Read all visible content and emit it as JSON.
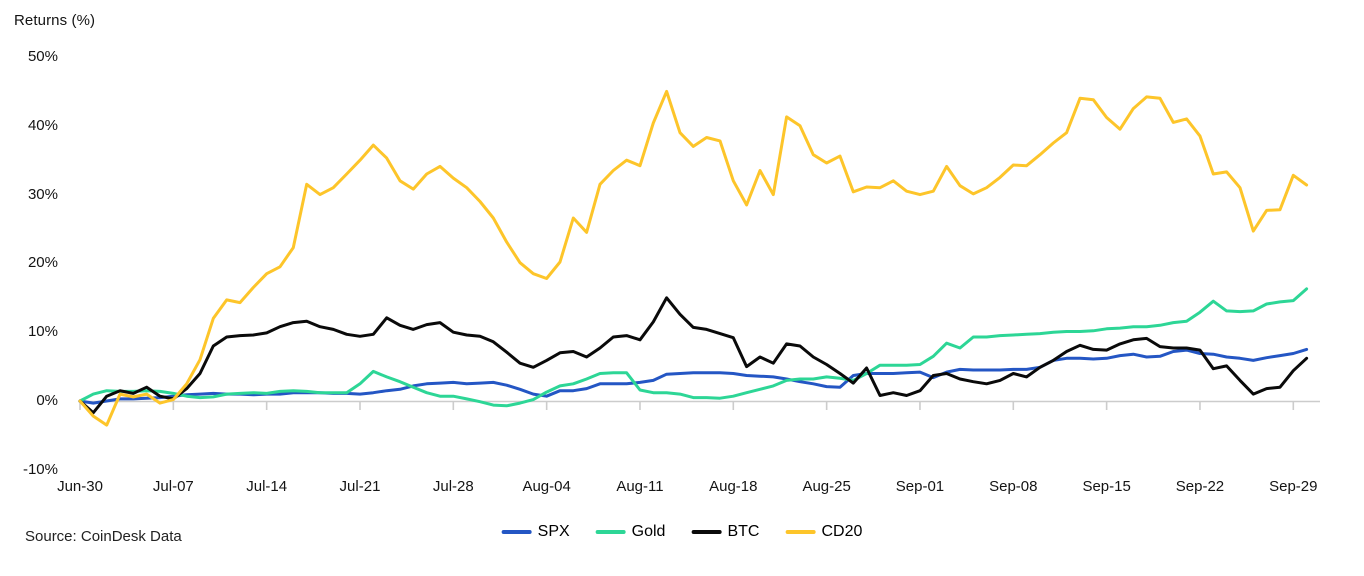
{
  "header": {
    "title": "Returns (%)"
  },
  "footer": {
    "source": "Source: CoinDesk Data"
  },
  "colors": {
    "spx_blue": "#2456c4",
    "gold_green": "#2dd696",
    "btc_black": "#0a0a0a",
    "cd20_yellow": "#fdc52a",
    "axis_gray": "#cccccc",
    "text_dark": "#141414"
  },
  "chart_data": {
    "type": "line",
    "title": "Returns (%)",
    "ylabel": "Returns (%)",
    "ylim": [
      -10,
      50
    ],
    "yticks": [
      50,
      40,
      30,
      20,
      10,
      0,
      -10
    ],
    "ytick_suffix": "%",
    "grid": "zero-baseline-only",
    "legend_position": "bottom-center",
    "x_tick_labels": [
      "Jun-30",
      "Jul-07",
      "Jul-14",
      "Jul-21",
      "Jul-28",
      "Aug-04",
      "Aug-11",
      "Aug-18",
      "Aug-25",
      "Sep-01",
      "Sep-08",
      "Sep-15",
      "Sep-22",
      "Sep-29"
    ],
    "x_dates": [
      "Jun-30",
      "Jul-01",
      "Jul-02",
      "Jul-03",
      "Jul-04",
      "Jul-05",
      "Jul-06",
      "Jul-07",
      "Jul-08",
      "Jul-09",
      "Jul-10",
      "Jul-11",
      "Jul-12",
      "Jul-13",
      "Jul-14",
      "Jul-15",
      "Jul-16",
      "Jul-17",
      "Jul-18",
      "Jul-19",
      "Jul-20",
      "Jul-21",
      "Jul-22",
      "Jul-23",
      "Jul-24",
      "Jul-25",
      "Jul-26",
      "Jul-27",
      "Jul-28",
      "Jul-29",
      "Jul-30",
      "Jul-31",
      "Aug-01",
      "Aug-02",
      "Aug-03",
      "Aug-04",
      "Aug-05",
      "Aug-06",
      "Aug-07",
      "Aug-08",
      "Aug-09",
      "Aug-10",
      "Aug-11",
      "Aug-12",
      "Aug-13",
      "Aug-14",
      "Aug-15",
      "Aug-16",
      "Aug-17",
      "Aug-18",
      "Aug-19",
      "Aug-20",
      "Aug-21",
      "Aug-22",
      "Aug-23",
      "Aug-24",
      "Aug-25",
      "Aug-26",
      "Aug-27",
      "Aug-28",
      "Aug-29",
      "Aug-30",
      "Aug-31",
      "Sep-01",
      "Sep-02",
      "Sep-03",
      "Sep-04",
      "Sep-05",
      "Sep-06",
      "Sep-07",
      "Sep-08",
      "Sep-09",
      "Sep-10",
      "Sep-11",
      "Sep-12",
      "Sep-13",
      "Sep-14",
      "Sep-15",
      "Sep-16",
      "Sep-17",
      "Sep-18",
      "Sep-19",
      "Sep-20",
      "Sep-21",
      "Sep-22",
      "Sep-23",
      "Sep-24",
      "Sep-25",
      "Sep-26",
      "Sep-27",
      "Sep-28",
      "Sep-29",
      "Sep-30"
    ],
    "series": [
      {
        "name": "SPX",
        "color": "#2456c4",
        "values": [
          0,
          -0.3,
          0,
          0.3,
          0.3,
          0.4,
          0.5,
          0.7,
          0.9,
          1,
          1.1,
          1,
          1,
          0.9,
          1,
          1,
          1.2,
          1.2,
          1.2,
          1.1,
          1.1,
          1,
          1.2,
          1.5,
          1.7,
          2.2,
          2.5,
          2.6,
          2.7,
          2.5,
          2.6,
          2.7,
          2.3,
          1.7,
          1,
          0.7,
          1.5,
          1.5,
          1.8,
          2.5,
          2.5,
          2.5,
          2.7,
          3,
          3.9,
          4,
          4.1,
          4.1,
          4.1,
          4,
          3.7,
          3.6,
          3.5,
          3.2,
          2.8,
          2.5,
          2.1,
          2,
          3.7,
          4,
          4,
          4,
          4.1,
          4.2,
          3.4,
          4.2,
          4.6,
          4.5,
          4.5,
          4.5,
          4.6,
          4.6,
          4.9,
          5.9,
          6.2,
          6.2,
          6.1,
          6.2,
          6.6,
          6.8,
          6.4,
          6.5,
          7.2,
          7.4,
          6.9,
          6.8,
          6.4,
          6.2,
          5.9,
          6.3,
          6.6,
          6.9,
          7.5
        ]
      },
      {
        "name": "Gold",
        "color": "#2dd696",
        "values": [
          0,
          1,
          1.5,
          1.4,
          1.4,
          1.5,
          1.4,
          1.1,
          0.7,
          0.5,
          0.6,
          1,
          1.1,
          1.2,
          1.1,
          1.4,
          1.5,
          1.4,
          1.2,
          1.2,
          1.2,
          2.5,
          4.3,
          3.5,
          2.8,
          2,
          1.2,
          0.7,
          0.7,
          0.3,
          -0.1,
          -0.6,
          -0.7,
          -0.3,
          0.2,
          1.3,
          2.2,
          2.5,
          3.2,
          4,
          4.1,
          4.1,
          1.6,
          1.2,
          1.2,
          1,
          0.5,
          0.5,
          0.4,
          0.7,
          1.2,
          1.7,
          2.2,
          3,
          3.2,
          3.2,
          3.5,
          3.3,
          3,
          4,
          5.2,
          5.2,
          5.2,
          5.3,
          6.5,
          8.4,
          7.7,
          9.3,
          9.3,
          9.5,
          9.6,
          9.7,
          9.8,
          10,
          10.1,
          10.1,
          10.2,
          10.5,
          10.6,
          10.8,
          10.8,
          11,
          11.4,
          11.6,
          12.9,
          14.5,
          13.1,
          13,
          13.1,
          14.1,
          14.4,
          14.6,
          16.3
        ]
      },
      {
        "name": "BTC",
        "color": "#0a0a0a",
        "values": [
          0,
          -1.7,
          0.7,
          1.5,
          1.1,
          2,
          0.7,
          0.3,
          1.8,
          4,
          8,
          9.3,
          9.5,
          9.6,
          9.9,
          10.8,
          11.4,
          11.6,
          10.8,
          10.4,
          9.7,
          9.4,
          9.7,
          12.1,
          11,
          10.4,
          11.1,
          11.4,
          10,
          9.6,
          9.4,
          8.6,
          7.1,
          5.5,
          4.9,
          5.9,
          7,
          7.2,
          6.4,
          7.7,
          9.3,
          9.5,
          8.9,
          11.5,
          15,
          12.6,
          10.7,
          10.4,
          9.8,
          9.2,
          5,
          6.4,
          5.5,
          8.3,
          8,
          6.4,
          5.3,
          4,
          2.6,
          4.8,
          0.8,
          1.2,
          0.8,
          1.5,
          3.7,
          4,
          3.2,
          2.8,
          2.5,
          3,
          4,
          3.5,
          4.9,
          5.9,
          7.2,
          8.1,
          7.5,
          7.4,
          8.3,
          8.9,
          9.1,
          7.9,
          7.7,
          7.7,
          7.4,
          4.7,
          5.1,
          3,
          1,
          1.8,
          2,
          4.4,
          6.2
        ]
      },
      {
        "name": "CD20",
        "color": "#fdc52a",
        "values": [
          0,
          -2.2,
          -3.5,
          1,
          0.6,
          1,
          -0.3,
          0.2,
          2.5,
          6,
          12,
          14.7,
          14.3,
          16.5,
          18.5,
          19.5,
          22.3,
          31.5,
          30,
          31,
          33,
          35,
          37.2,
          35.3,
          32,
          30.8,
          33,
          34.1,
          32.4,
          31,
          29,
          26.6,
          23.1,
          20.1,
          18.5,
          17.8,
          20.2,
          26.6,
          24.5,
          31.5,
          33.5,
          35,
          34.2,
          40.4,
          45,
          39,
          37,
          38.3,
          37.8,
          32,
          28.5,
          33.5,
          30,
          41.3,
          40,
          35.8,
          34.6,
          35.6,
          30.4,
          31.1,
          31,
          32,
          30.5,
          30,
          30.5,
          34.1,
          31.3,
          30.1,
          31,
          32.5,
          34.3,
          34.2,
          35.8,
          37.5,
          39,
          44,
          43.8,
          41.2,
          39.5,
          42.5,
          44.2,
          44,
          40.5,
          41,
          38.5,
          33,
          33.3,
          31,
          24.7,
          27.7,
          27.8,
          32.8,
          31.4
        ]
      }
    ]
  }
}
